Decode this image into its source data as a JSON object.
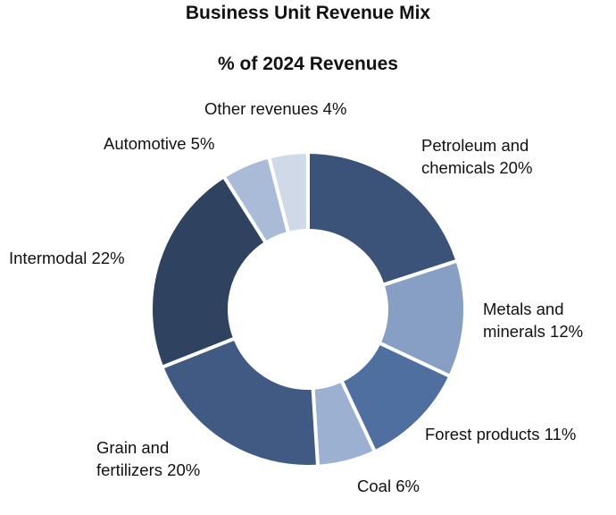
{
  "chart_data": {
    "type": "pie",
    "title": "Business Unit Revenue Mix",
    "subtitle": "% of 2024 Revenues",
    "slices": [
      {
        "label": "Petroleum and chemicals",
        "label_lines": [
          "Petroleum and",
          "chemicals 20%"
        ],
        "value": 20,
        "color": "#3b5378"
      },
      {
        "label": "Metals and minerals",
        "label_lines": [
          "Metals and",
          "minerals 12%"
        ],
        "value": 12,
        "color": "#869fc2"
      },
      {
        "label": "Forest products",
        "label_lines": [
          "Forest products 11%"
        ],
        "value": 11,
        "color": "#4e6f9f"
      },
      {
        "label": "Coal",
        "label_lines": [
          "Coal 6%"
        ],
        "value": 6,
        "color": "#9cb0d1"
      },
      {
        "label": "Grain and fertilizers",
        "label_lines": [
          "Grain and",
          "fertilizers 20%"
        ],
        "value": 20,
        "color": "#405a83"
      },
      {
        "label": "Intermodal",
        "label_lines": [
          "Intermodal 22%"
        ],
        "value": 22,
        "color": "#2f4260"
      },
      {
        "label": "Automotive",
        "label_lines": [
          "Automotive 5%"
        ],
        "value": 5,
        "color": "#a9bbd7"
      },
      {
        "label": "Other revenues",
        "label_lines": [
          "Other revenues 4%"
        ],
        "value": 4,
        "color": "#cfd9e8"
      }
    ]
  }
}
